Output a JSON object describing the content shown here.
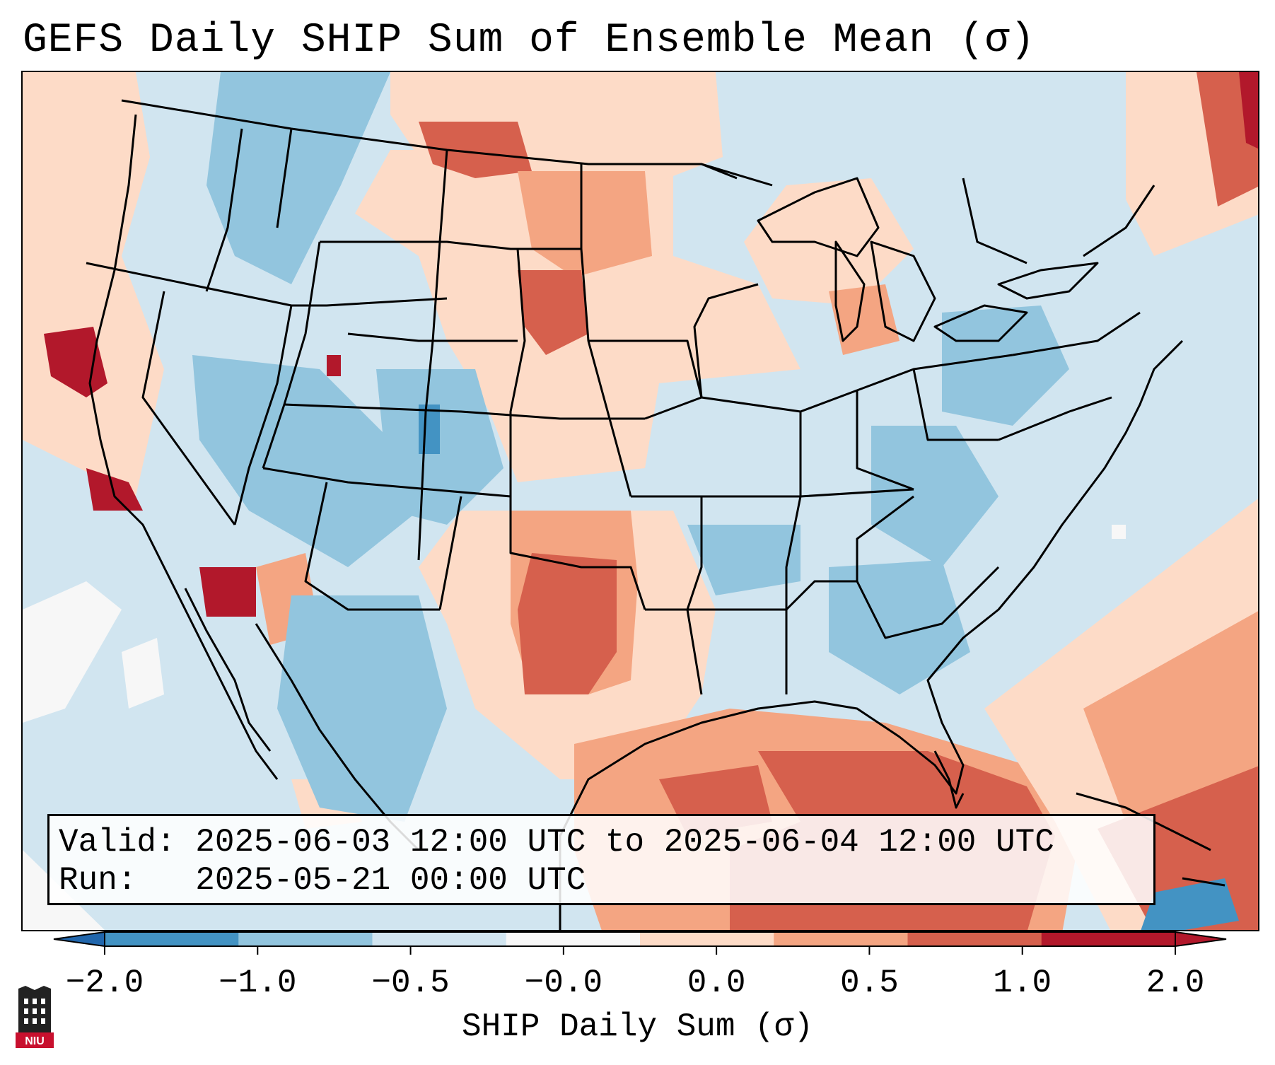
{
  "title": "GEFS Daily SHIP Sum of Ensemble Mean (σ)",
  "valid_line": "Valid: 2025-06-03 12:00 UTC to 2025-06-04 12:00 UTC",
  "run_line": "Run:   2025-05-21 00:00 UTC",
  "colorbar": {
    "label": "SHIP Daily Sum (σ)",
    "ticks": [
      "−2.0",
      "−1.0",
      "−0.5",
      "−0.0",
      "0.0",
      "0.5",
      "1.0",
      "2.0"
    ],
    "colors": [
      "#4393c3",
      "#92c5de",
      "#d1e5f0",
      "#f7f7f7",
      "#fddbc7",
      "#f4a582",
      "#d6604d",
      "#b2182b"
    ],
    "extend_low_color": "#2166ac",
    "extend_high_color": "#b2182b"
  },
  "logo_text": "NIU"
}
